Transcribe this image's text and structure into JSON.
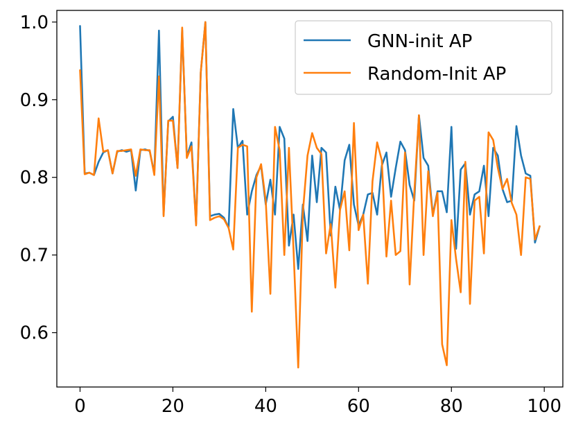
{
  "chart_data": {
    "type": "line",
    "title": "",
    "xlabel": "",
    "ylabel": "",
    "xlim": [
      -5,
      104
    ],
    "ylim": [
      0.53,
      1.015
    ],
    "xticks": [
      0,
      20,
      40,
      60,
      80,
      100
    ],
    "yticks": [
      0.6,
      0.7,
      0.8,
      0.9,
      1.0
    ],
    "xtick_labels": [
      "0",
      "20",
      "40",
      "60",
      "80",
      "100"
    ],
    "ytick_labels": [
      "0.6",
      "0.7",
      "0.8",
      "0.9",
      "1.0"
    ],
    "grid": false,
    "legend_position": "top-right",
    "series": [
      {
        "name": "GNN-init AP",
        "color": "#1f77b4",
        "values": [
          0.995,
          0.805,
          0.806,
          0.803,
          0.82,
          0.832,
          0.835,
          0.805,
          0.833,
          0.835,
          0.833,
          0.835,
          0.783,
          0.835,
          0.836,
          0.834,
          0.805,
          0.989,
          0.752,
          0.872,
          0.878,
          0.812,
          0.99,
          0.827,
          0.845,
          0.74,
          0.935,
          1.0,
          0.75,
          0.752,
          0.753,
          0.748,
          0.735,
          0.888,
          0.838,
          0.847,
          0.752,
          0.782,
          0.803,
          0.815,
          0.765,
          0.797,
          0.752,
          0.865,
          0.85,
          0.712,
          0.752,
          0.682,
          0.765,
          0.718,
          0.828,
          0.768,
          0.838,
          0.832,
          0.725,
          0.788,
          0.758,
          0.822,
          0.842,
          0.765,
          0.738,
          0.752,
          0.778,
          0.78,
          0.752,
          0.815,
          0.832,
          0.775,
          0.812,
          0.846,
          0.835,
          0.79,
          0.77,
          0.88,
          0.825,
          0.815,
          0.752,
          0.782,
          0.782,
          0.755,
          0.865,
          0.708,
          0.81,
          0.818,
          0.752,
          0.778,
          0.782,
          0.815,
          0.75,
          0.838,
          0.828,
          0.785,
          0.768,
          0.77,
          0.866,
          0.828,
          0.805,
          0.802,
          0.716,
          0.737
        ]
      },
      {
        "name": "Random-Init AP",
        "color": "#ff7f0e",
        "values": [
          0.938,
          0.804,
          0.806,
          0.803,
          0.876,
          0.833,
          0.835,
          0.805,
          0.834,
          0.834,
          0.835,
          0.836,
          0.802,
          0.836,
          0.835,
          0.835,
          0.803,
          0.93,
          0.75,
          0.873,
          0.873,
          0.812,
          0.993,
          0.825,
          0.84,
          0.738,
          0.935,
          1.0,
          0.745,
          0.748,
          0.75,
          0.746,
          0.735,
          0.707,
          0.838,
          0.842,
          0.84,
          0.627,
          0.8,
          0.817,
          0.77,
          0.65,
          0.865,
          0.835,
          0.7,
          0.838,
          0.705,
          0.555,
          0.755,
          0.828,
          0.857,
          0.838,
          0.83,
          0.702,
          0.74,
          0.658,
          0.758,
          0.782,
          0.706,
          0.87,
          0.732,
          0.752,
          0.663,
          0.795,
          0.845,
          0.822,
          0.698,
          0.77,
          0.7,
          0.705,
          0.832,
          0.662,
          0.78,
          0.88,
          0.7,
          0.808,
          0.75,
          0.78,
          0.585,
          0.558,
          0.745,
          0.695,
          0.652,
          0.82,
          0.637,
          0.77,
          0.775,
          0.702,
          0.858,
          0.848,
          0.812,
          0.785,
          0.798,
          0.767,
          0.752,
          0.7,
          0.8,
          0.798,
          0.72,
          0.737
        ]
      }
    ]
  }
}
